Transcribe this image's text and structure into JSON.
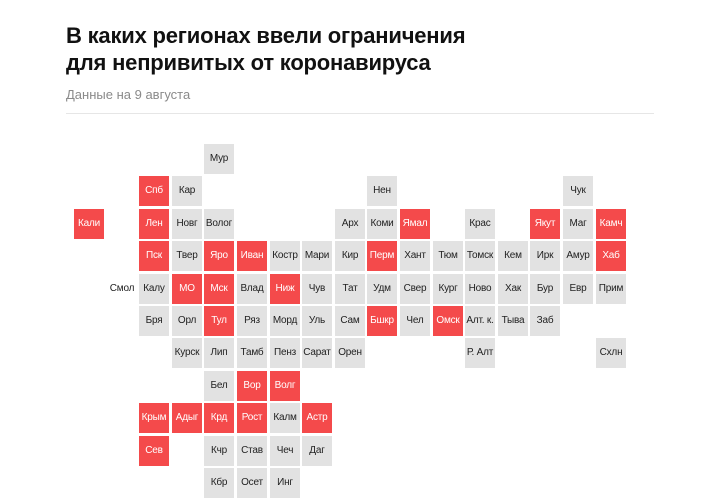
{
  "header": {
    "title_line1": "В каких регионах ввели ограничения",
    "title_line2": "для непривитых от коронавируса",
    "subtitle": "Данные на 9 августа"
  },
  "colors": {
    "restricted": "#f44a4b",
    "not_restricted": "#e2e2e2",
    "text": "#222222"
  },
  "map_data": {
    "rows": [
      [
        [
          6,
          "Мур",
          "no"
        ]
      ],
      [
        [
          4,
          "Спб",
          "yes"
        ],
        [
          5,
          "Кар",
          "no"
        ],
        [
          11,
          "Нен",
          "no"
        ],
        [
          17,
          "Чук",
          "no"
        ]
      ],
      [
        [
          2,
          "Кали",
          "yes"
        ],
        [
          4,
          "Лен",
          "yes"
        ],
        [
          5,
          "Новг",
          "no"
        ],
        [
          6,
          "Волог",
          "no"
        ],
        [
          10,
          "Арх",
          "no"
        ],
        [
          11,
          "Коми",
          "no"
        ],
        [
          12,
          "Ямал",
          "yes"
        ],
        [
          14,
          "Крас",
          "no"
        ],
        [
          16,
          "Якут",
          "yes"
        ],
        [
          17,
          "Маг",
          "no"
        ],
        [
          18,
          "Камч",
          "yes"
        ]
      ],
      [
        [
          4,
          "Пск",
          "yes"
        ],
        [
          5,
          "Твер",
          "no"
        ],
        [
          6,
          "Яро",
          "yes"
        ],
        [
          7,
          "Иван",
          "yes"
        ],
        [
          8,
          "Костр",
          "no"
        ],
        [
          9,
          "Мари",
          "no"
        ],
        [
          10,
          "Кир",
          "no"
        ],
        [
          11,
          "Перм",
          "yes"
        ],
        [
          12,
          "Хант",
          "no"
        ],
        [
          13,
          "Тюм",
          "no"
        ],
        [
          14,
          "Томск",
          "no"
        ],
        [
          15,
          "Кем",
          "no"
        ],
        [
          16,
          "Ирк",
          "no"
        ],
        [
          17,
          "Амур",
          "no"
        ],
        [
          18,
          "Хаб",
          "yes"
        ]
      ],
      [
        [
          3,
          "Смол",
          "none"
        ],
        [
          4,
          "Калу",
          "no"
        ],
        [
          5,
          "МО",
          "yes"
        ],
        [
          6,
          "Мск",
          "yes"
        ],
        [
          7,
          "Влад",
          "no"
        ],
        [
          8,
          "Ниж",
          "yes"
        ],
        [
          9,
          "Чув",
          "no"
        ],
        [
          10,
          "Тат",
          "no"
        ],
        [
          11,
          "Удм",
          "no"
        ],
        [
          12,
          "Свер",
          "no"
        ],
        [
          13,
          "Кург",
          "no"
        ],
        [
          14,
          "Ново",
          "no"
        ],
        [
          15,
          "Хак",
          "no"
        ],
        [
          16,
          "Бур",
          "no"
        ],
        [
          17,
          "Евр",
          "no"
        ],
        [
          18,
          "Прим",
          "no"
        ]
      ],
      [
        [
          4,
          "Бря",
          "no"
        ],
        [
          5,
          "Орл",
          "no"
        ],
        [
          6,
          "Тул",
          "yes"
        ],
        [
          7,
          "Ряз",
          "no"
        ],
        [
          8,
          "Морд",
          "no"
        ],
        [
          9,
          "Уль",
          "no"
        ],
        [
          10,
          "Сам",
          "no"
        ],
        [
          11,
          "Бшкр",
          "yes"
        ],
        [
          12,
          "Чел",
          "no"
        ],
        [
          13,
          "Омск",
          "yes"
        ],
        [
          14,
          "Алт. к.",
          "no"
        ],
        [
          15,
          "Тыва",
          "no"
        ],
        [
          16,
          "Заб",
          "no"
        ]
      ],
      [
        [
          5,
          "Курск",
          "no"
        ],
        [
          6,
          "Лип",
          "no"
        ],
        [
          7,
          "Тамб",
          "no"
        ],
        [
          8,
          "Пенз",
          "no"
        ],
        [
          9,
          "Сарат",
          "no"
        ],
        [
          10,
          "Орен",
          "no"
        ],
        [
          14,
          "Р. Алт",
          "no"
        ],
        [
          18,
          "Схлн",
          "no"
        ]
      ],
      [
        [
          6,
          "Бел",
          "no"
        ],
        [
          7,
          "Вор",
          "yes"
        ],
        [
          8,
          "Волг",
          "yes"
        ]
      ],
      [
        [
          4,
          "Крым",
          "yes"
        ],
        [
          5,
          "Адыг",
          "yes"
        ],
        [
          6,
          "Крд",
          "yes"
        ],
        [
          7,
          "Рост",
          "yes"
        ],
        [
          8,
          "Калм",
          "no"
        ],
        [
          9,
          "Астр",
          "yes"
        ]
      ],
      [
        [
          4,
          "Сев",
          "yes"
        ],
        [
          6,
          "Кчр",
          "no"
        ],
        [
          7,
          "Став",
          "no"
        ],
        [
          8,
          "Чеч",
          "no"
        ],
        [
          9,
          "Даг",
          "no"
        ]
      ],
      [
        [
          6,
          "Кбр",
          "no"
        ],
        [
          7,
          "Осет",
          "no"
        ],
        [
          8,
          "Инг",
          "no"
        ]
      ]
    ]
  }
}
